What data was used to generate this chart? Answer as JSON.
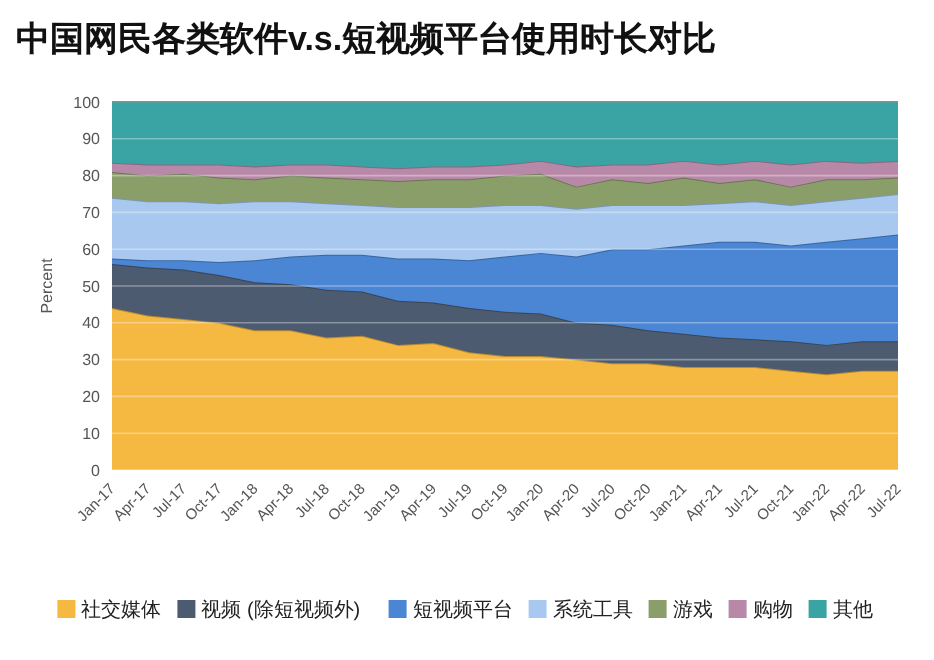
{
  "chart_data": {
    "type": "area",
    "stacked": true,
    "title": "中国网民各类软件v.s.短视频平台使用时长对比",
    "ylabel": "Percent",
    "categories": [
      "Jan-17",
      "Apr-17",
      "Jul-17",
      "Oct-17",
      "Jan-18",
      "Apr-18",
      "Jul-18",
      "Oct-18",
      "Jan-19",
      "Apr-19",
      "Jul-19",
      "Oct-19",
      "Jan-20",
      "Apr-20",
      "Jul-20",
      "Oct-20",
      "Jan-21",
      "Apr-21",
      "Jul-21",
      "Oct-21",
      "Jan-22",
      "Apr-22",
      "Jul-22"
    ],
    "ylim": [
      0,
      100
    ],
    "yticks": [
      0,
      10,
      20,
      30,
      40,
      50,
      60,
      70,
      80,
      90,
      100
    ],
    "grid": "y",
    "legend": "bottom",
    "series": [
      {
        "name": "社交媒体",
        "color": "#f5b942",
        "values": [
          44,
          42,
          41,
          40,
          38,
          38,
          36,
          36.5,
          34,
          34.5,
          32,
          31,
          31,
          30,
          29,
          29,
          28,
          28,
          28,
          27,
          26,
          27,
          27
        ]
      },
      {
        "name": "视频 (除短视频外)",
        "color": "#4d5b70",
        "values": [
          12,
          13,
          13.5,
          13,
          13,
          12.5,
          13,
          12,
          12,
          11,
          12,
          12,
          11.5,
          10,
          10.5,
          9,
          9,
          8,
          7.5,
          8,
          8,
          8,
          8
        ]
      },
      {
        "name": "短视频平台",
        "color": "#4a86d4",
        "values": [
          1.5,
          2,
          2.5,
          3.5,
          6,
          7.5,
          9.5,
          10,
          11.5,
          12,
          13,
          15,
          16.5,
          18,
          20.5,
          22,
          24,
          26,
          26.5,
          26,
          28,
          28,
          29
        ]
      },
      {
        "name": "系统工具",
        "color": "#a8c8ef",
        "values": [
          16.5,
          16,
          16,
          16,
          16,
          15,
          14,
          13.5,
          14,
          14,
          14.5,
          14,
          13,
          13,
          12,
          12,
          11,
          10.5,
          11,
          11,
          11,
          11,
          11
        ]
      },
      {
        "name": "游戏",
        "color": "#8a9e6a",
        "values": [
          7,
          7,
          7.5,
          7,
          6,
          7,
          7,
          7,
          7,
          7.5,
          7.5,
          8,
          8.5,
          6,
          7,
          6,
          7.5,
          5.5,
          6,
          5,
          6,
          5,
          4.5
        ]
      },
      {
        "name": "购物",
        "color": "#b888a8",
        "values": [
          2.5,
          3,
          2.5,
          3.5,
          3.5,
          3,
          3.5,
          3.5,
          3.5,
          3.5,
          3.5,
          3,
          3.5,
          5.5,
          4,
          5,
          4.5,
          5,
          5,
          6,
          5,
          4.5,
          4.5
        ]
      },
      {
        "name": "其他",
        "color": "#3aa3a3",
        "values": [
          16.5,
          17,
          17,
          17,
          17.5,
          17,
          17,
          17.5,
          18,
          17.5,
          17.5,
          17,
          16,
          17.5,
          17,
          17,
          16,
          17,
          16,
          17,
          16,
          16.5,
          16
        ]
      }
    ]
  }
}
